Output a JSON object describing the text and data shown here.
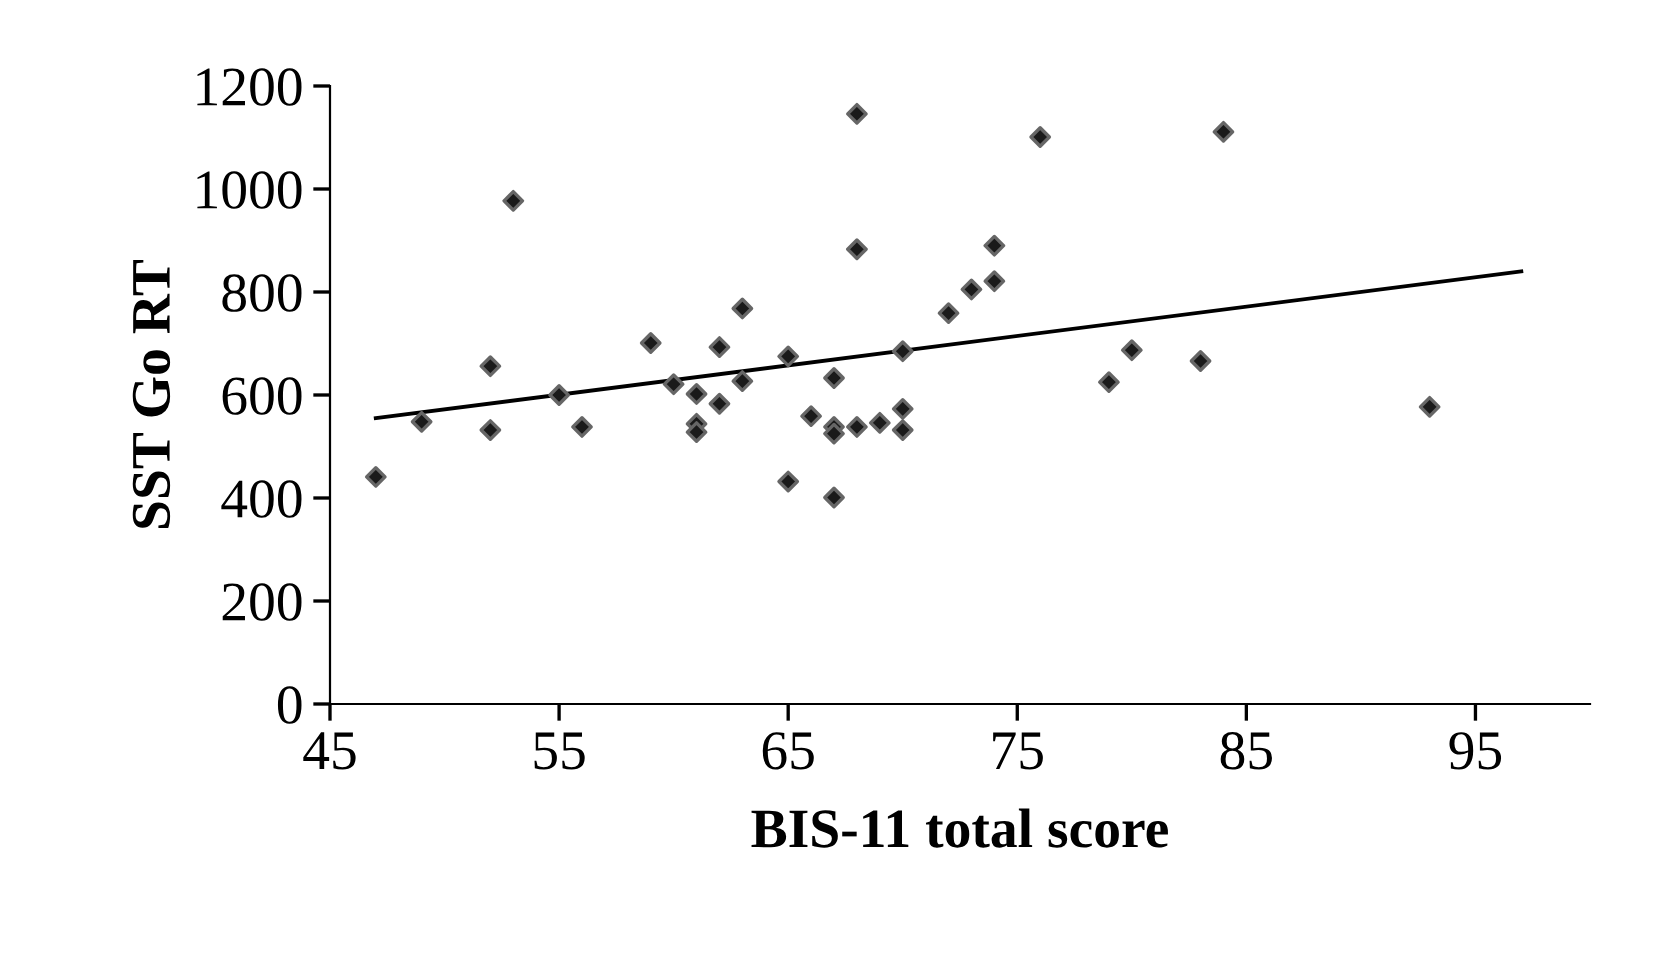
{
  "chart_data": {
    "type": "scatter",
    "xlabel": "BIS-11 total score",
    "ylabel": "SST Go RT",
    "xlim": [
      45,
      100
    ],
    "xticks": [
      45,
      55,
      65,
      75,
      85,
      95
    ],
    "ylim": [
      0,
      1200
    ],
    "yticks": [
      0,
      200,
      400,
      600,
      800,
      1000,
      1200
    ],
    "grid": false,
    "legend": false,
    "series": [
      {
        "color": "#1a1a1a",
        "marker": "diamond",
        "x": [
          47,
          49,
          52,
          52,
          53,
          55,
          56,
          59,
          60,
          61,
          61,
          61,
          62,
          62,
          63,
          63,
          65,
          65,
          66,
          67,
          67,
          67,
          67,
          68,
          68,
          68,
          69,
          70,
          70,
          70,
          72,
          73,
          74,
          74,
          76,
          79,
          80,
          83,
          84,
          93
        ],
        "values": [
          441,
          548,
          656,
          532,
          977,
          600,
          538,
          701,
          621,
          602,
          544,
          528,
          693,
          583,
          768,
          627,
          675,
          432,
          559,
          633,
          538,
          525,
          401,
          1146,
          883,
          538,
          546,
          685,
          573,
          532,
          759,
          805,
          890,
          821,
          1101,
          625,
          687,
          666,
          1111,
          577
        ]
      },
      {
        "type": "line",
        "color": "#000000",
        "marker": "none",
        "line_style": "solid",
        "x": [
          47,
          97
        ],
        "values": [
          555,
          840
        ]
      }
    ]
  }
}
